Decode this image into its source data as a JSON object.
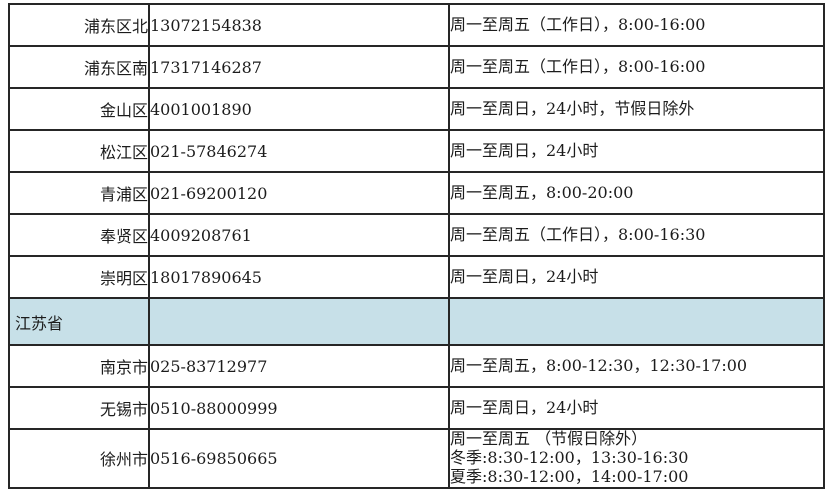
{
  "table": {
    "description": "Regional service hotline table with phone numbers and service hours",
    "columns": {
      "region": "region",
      "phone": "phone number",
      "hours": "service hours"
    },
    "highlight_bg": "#c7e0e8",
    "border_color": "#262626",
    "rows": [
      {
        "region": "浦东区北",
        "phone": "13072154838",
        "hours": "周一至周五（工作日），8:00-16:00"
      },
      {
        "region": "浦东区南",
        "phone": "17317146287",
        "hours": "周一至周五（工作日），8:00-16:00"
      },
      {
        "region": "金山区",
        "phone": "4001001890",
        "hours": "周一至周日，24小时，节假日除外"
      },
      {
        "region": "松江区",
        "phone": "021-57846274",
        "hours": "周一至周日，24小时"
      },
      {
        "region": "青浦区",
        "phone": "021-69200120",
        "hours": "周一至周五，8:00-20:00"
      },
      {
        "region": "奉贤区",
        "phone": "4009208761",
        "hours": "周一至周五（工作日），8:00-16:30"
      },
      {
        "region": "崇明区",
        "phone": "18017890645",
        "hours": "周一至周日，24小时"
      },
      {
        "region": "江苏省",
        "phone": "",
        "hours": ""
      },
      {
        "region": "南京市",
        "phone": "025-83712977",
        "hours": "周一至周五，8:00-12:30，12:30-17:00"
      },
      {
        "region": "无锡市",
        "phone": "0510-88000999",
        "hours": "周一至周日，24小时"
      },
      {
        "region": "徐州市",
        "phone": "0516-69850665",
        "hours": "周一至周五 （节假日除外）\n冬季:8:30-12:00，13:30-16:30\n夏季:8:30-12:00，14:00-17:00"
      }
    ]
  }
}
